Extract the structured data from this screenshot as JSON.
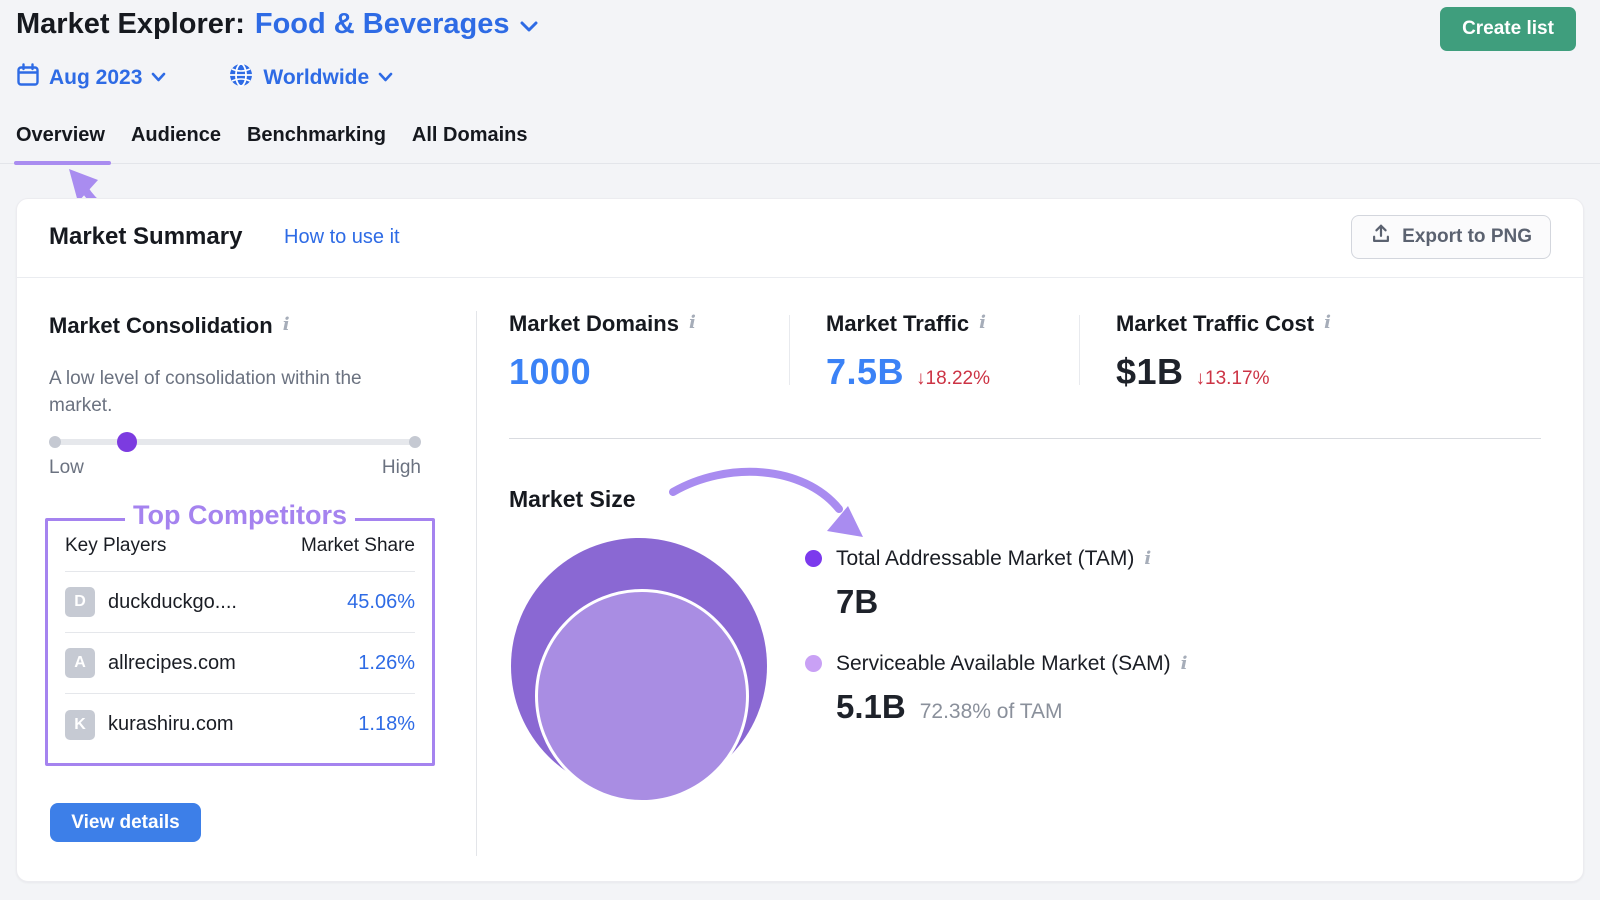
{
  "header": {
    "title_prefix": "Market Explorer:",
    "market_label": "Food & Beverages",
    "date_label": "Aug 2023",
    "region_label": "Worldwide",
    "create_list_label": "Create list"
  },
  "tabs": [
    {
      "label": "Overview",
      "active": true
    },
    {
      "label": "Audience",
      "active": false
    },
    {
      "label": "Benchmarking",
      "active": false
    },
    {
      "label": "All Domains",
      "active": false
    }
  ],
  "summary": {
    "title": "Market Summary",
    "how_to_use_label": "How to use it",
    "export_label": "Export to PNG"
  },
  "consolidation": {
    "title": "Market Consolidation",
    "description": "A low level of consolidation within the market.",
    "low_label": "Low",
    "high_label": "High",
    "level_percent": 21
  },
  "competitors": {
    "annotation": "Top Competitors",
    "col_players": "Key Players",
    "col_share": "Market Share",
    "rows": [
      {
        "initial": "D",
        "domain": "duckduckgo....",
        "share": "45.06%"
      },
      {
        "initial": "A",
        "domain": "allrecipes.com",
        "share": "1.26%"
      },
      {
        "initial": "K",
        "domain": "kurashiru.com",
        "share": "1.18%"
      }
    ],
    "view_details_label": "View details"
  },
  "metrics": [
    {
      "label": "Market Domains",
      "value": "1000"
    },
    {
      "label": "Market Traffic",
      "value": "7.5B",
      "change": "↓18.22%"
    },
    {
      "label": "Market Traffic Cost",
      "value": "$1B",
      "change": "↓13.17%"
    }
  ],
  "market_size": {
    "title": "Market Size",
    "tam": {
      "label": "Total Addressable Market (TAM)",
      "value": "7B"
    },
    "sam": {
      "label": "Serviceable Available Market (SAM)",
      "value": "5.1B",
      "note": "72.38% of TAM"
    }
  },
  "colors": {
    "accent_blue": "#2e6be5",
    "value_blue": "#3b82f6",
    "negative_red": "#cc3344",
    "annotation_purple": "#a583ef",
    "tam_purple": "#7c3aed",
    "sam_purple": "#c9a1f5",
    "venn_outer": "#8a68d3",
    "venn_inner": "#a98de3",
    "create_list_green": "#3f9e7d",
    "view_details_blue": "#3d7fe8"
  }
}
